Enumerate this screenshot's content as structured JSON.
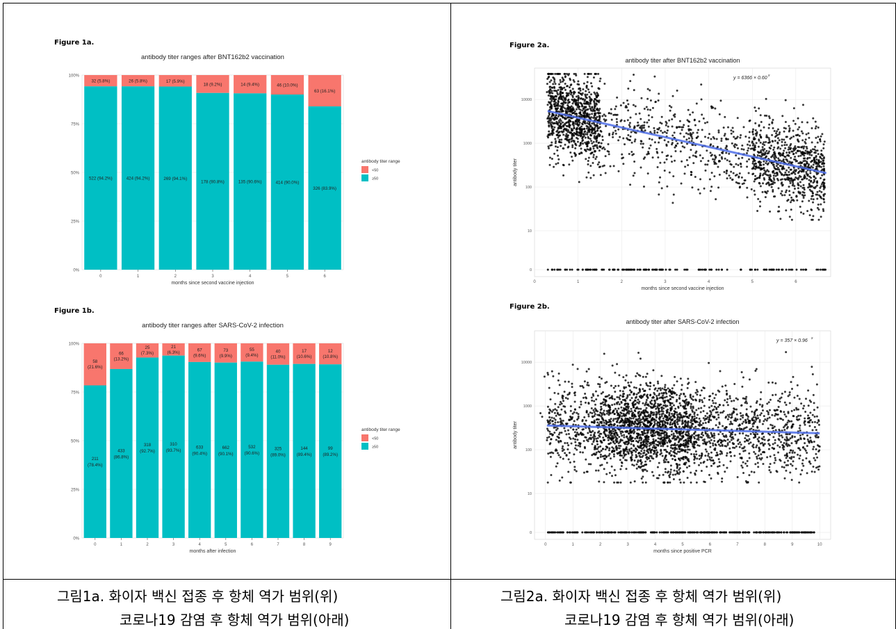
{
  "figure_labels": {
    "fig1a": "Figure 1a.",
    "fig1b": "Figure 1b.",
    "fig2a": "Figure 2a.",
    "fig2b": "Figure 2b."
  },
  "captions": {
    "left_line1": "그림1a. 화이자 백신 접종 후 항체 역가 범위(위)",
    "left_line2": "코로나19 감염 후 항체 역가 범위(아래)",
    "right_line1": "그림2a. 화이자 백신 접종 후 항체 역가 범위(위)",
    "right_line2": "코로나19 감염 후 항체 역가 범위(아래)"
  },
  "colors": {
    "high": "#f8766d",
    "low": "#00bfc4",
    "point": "#000000",
    "trend": "#4f6fe8",
    "panel_bg": "#ffffff",
    "grid": "#e5e5e5"
  },
  "chart_data": [
    {
      "id": "fig1a",
      "type": "bar",
      "stacked": "percent",
      "title": "antibody titer ranges after BNT162b2 vaccination",
      "xlabel": "months since second vaccine injection",
      "ylabel": "",
      "categories": [
        "0",
        "1",
        "2",
        "3",
        "4",
        "5",
        "6"
      ],
      "y_ticks": [
        "0%",
        "25%",
        "50%",
        "75%",
        "100%"
      ],
      "legend_title": "antibody titer range",
      "legend": [
        "<50",
        "≥50"
      ],
      "series": [
        {
          "name": "<50",
          "values": [
            5.8,
            5.8,
            5.9,
            9.2,
            9.4,
            10.0,
            16.1
          ],
          "labels": [
            "32 (5.8%)",
            "26 (5.8%)",
            "17 (5.9%)",
            "18 (9.2%)",
            "14 (9.4%)",
            "46 (10.0%)",
            "63 (16.1%)"
          ]
        },
        {
          "name": "≥50",
          "values": [
            94.2,
            94.2,
            94.1,
            90.8,
            90.6,
            90.0,
            83.9
          ],
          "labels": [
            "522 (94.2%)",
            "424 (94.2%)",
            "269 (94.1%)",
            "178 (90.8%)",
            "135 (90.6%)",
            "414 (90.0%)",
            "326 (83.9%)"
          ]
        }
      ]
    },
    {
      "id": "fig1b",
      "type": "bar",
      "stacked": "percent",
      "title": "antibody titer ranges after SARS-CoV-2 infection",
      "xlabel": "months after infection",
      "ylabel": "",
      "categories": [
        "0",
        "1",
        "2",
        "3",
        "4",
        "5",
        "6",
        "7",
        "8",
        "9"
      ],
      "y_ticks": [
        "0%",
        "25%",
        "50%",
        "75%",
        "100%"
      ],
      "legend_title": "antibody titer range",
      "legend": [
        "<50",
        "≥50"
      ],
      "series": [
        {
          "name": "<50",
          "values": [
            21.6,
            13.2,
            7.3,
            6.3,
            9.6,
            9.9,
            9.4,
            11.0,
            10.6,
            10.8
          ],
          "labels": [
            [
              "58",
              "(21.6%)"
            ],
            [
              "66",
              "(13.2%)"
            ],
            [
              "25",
              "(7.3%)"
            ],
            [
              "21",
              "(6.3%)"
            ],
            [
              "67",
              "(9.6%)"
            ],
            [
              "73",
              "(9.9%)"
            ],
            [
              "55",
              "(9.4%)"
            ],
            [
              "40",
              "(11.0%)"
            ],
            [
              "17",
              "(10.6%)"
            ],
            [
              "12",
              "(10.8%)"
            ]
          ]
        },
        {
          "name": "≥50",
          "values": [
            78.4,
            86.8,
            92.7,
            93.7,
            90.4,
            90.1,
            90.6,
            89.0,
            89.4,
            89.2
          ],
          "labels": [
            [
              "211",
              "(78.4%)"
            ],
            [
              "433",
              "(86.8%)"
            ],
            [
              "318",
              "(92.7%)"
            ],
            [
              "310",
              "(93.7%)"
            ],
            [
              "633",
              "(90.4%)"
            ],
            [
              "662",
              "(90.1%)"
            ],
            [
              "532",
              "(90.6%)"
            ],
            [
              "325",
              "(89.0%)"
            ],
            [
              "144",
              "(89.4%)"
            ],
            [
              "99",
              "(89.2%)"
            ]
          ]
        }
      ]
    },
    {
      "id": "fig2a",
      "type": "scatter",
      "title": "antibody titer after BNT162b2 vaccination",
      "xlabel": "months since second vaccine injection",
      "ylabel": "antibody titer",
      "equation": "y = 6366 × 0.60",
      "equation_exp": "x",
      "x_ticks": [
        "0",
        "1",
        "2",
        "3",
        "4",
        "5",
        "6"
      ],
      "y_ticks": [
        "0",
        "10",
        "100",
        "1000",
        "10000"
      ],
      "xlim": [
        0,
        6.8
      ],
      "trend": {
        "a": 6366,
        "b": 0.6,
        "x_from": 0.3,
        "x_to": 6.7
      },
      "point_count": 2300,
      "zero_row_count": 150
    },
    {
      "id": "fig2b",
      "type": "scatter",
      "title": "antibody titer after SARS-CoV-2 infection",
      "xlabel": "months since positive PCR",
      "ylabel": "antibody titer",
      "equation": "y = 357 × 0.96",
      "equation_exp": "x",
      "x_ticks": [
        "0",
        "1",
        "2",
        "3",
        "4",
        "5",
        "6",
        "7",
        "8",
        "9",
        "10"
      ],
      "y_ticks": [
        "0",
        "10",
        "100",
        "1000",
        "10000"
      ],
      "xlim": [
        -0.4,
        10.4
      ],
      "trend": {
        "a": 357,
        "b": 0.96,
        "x_from": 0.05,
        "x_to": 10
      },
      "point_count": 2900,
      "zero_row_count": 300
    }
  ]
}
